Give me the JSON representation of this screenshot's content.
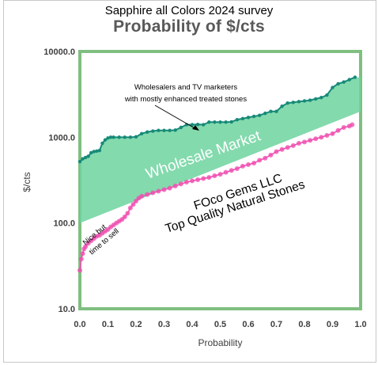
{
  "header": {
    "top_title": "Sapphire all Colors 2024 survey",
    "title": "Probability of $/cts"
  },
  "chart_data": {
    "type": "scatter",
    "title": "Probability of $/cts",
    "xlabel": "Probability",
    "ylabel": "$/cts",
    "xlim": [
      0.0,
      1.0
    ],
    "ylim": [
      10,
      10000
    ],
    "yscale": "log",
    "grid": false,
    "x_tick_labels": [
      "0.0",
      "0.1",
      "0.2",
      "0.3",
      "0.4",
      "0.5",
      "0.6",
      "0.7",
      "0.8",
      "0.9",
      "1.0"
    ],
    "y_tick_labels": [
      "10.0",
      "100.0",
      "1000.0",
      "10000.0"
    ],
    "colors": {
      "upper": "#178a78",
      "lower": "#f04fb0",
      "band": "#6dd49f"
    },
    "band": {
      "label": "Wholesale Market",
      "lower_edge": [
        [
          0.0,
          100
        ],
        [
          1.0,
          2000
        ]
      ],
      "upper_edge": "upper series"
    },
    "series": [
      {
        "role": "upper",
        "points": [
          [
            0.0,
            520
          ],
          [
            0.01,
            560
          ],
          [
            0.02,
            580
          ],
          [
            0.03,
            600
          ],
          [
            0.04,
            660
          ],
          [
            0.05,
            680
          ],
          [
            0.06,
            690
          ],
          [
            0.07,
            700
          ],
          [
            0.08,
            850
          ],
          [
            0.09,
            930
          ],
          [
            0.1,
            980
          ],
          [
            0.11,
            1000
          ],
          [
            0.12,
            1000
          ],
          [
            0.14,
            1000
          ],
          [
            0.16,
            1000
          ],
          [
            0.18,
            1000
          ],
          [
            0.2,
            1010
          ],
          [
            0.22,
            1100
          ],
          [
            0.24,
            1150
          ],
          [
            0.26,
            1180
          ],
          [
            0.28,
            1200
          ],
          [
            0.3,
            1200
          ],
          [
            0.32,
            1200
          ],
          [
            0.34,
            1210
          ],
          [
            0.36,
            1300
          ],
          [
            0.38,
            1400
          ],
          [
            0.4,
            1400
          ],
          [
            0.42,
            1410
          ],
          [
            0.44,
            1400
          ],
          [
            0.46,
            1500
          ],
          [
            0.48,
            1500
          ],
          [
            0.5,
            1500
          ],
          [
            0.52,
            1500
          ],
          [
            0.54,
            1510
          ],
          [
            0.56,
            1600
          ],
          [
            0.58,
            1650
          ],
          [
            0.6,
            1700
          ],
          [
            0.62,
            1750
          ],
          [
            0.64,
            1800
          ],
          [
            0.66,
            1900
          ],
          [
            0.68,
            2000
          ],
          [
            0.7,
            2000
          ],
          [
            0.72,
            2300
          ],
          [
            0.74,
            2500
          ],
          [
            0.76,
            2550
          ],
          [
            0.78,
            2600
          ],
          [
            0.8,
            2650
          ],
          [
            0.82,
            2700
          ],
          [
            0.84,
            2800
          ],
          [
            0.86,
            2900
          ],
          [
            0.88,
            3100
          ],
          [
            0.9,
            3800
          ],
          [
            0.92,
            4200
          ],
          [
            0.94,
            4400
          ],
          [
            0.96,
            4700
          ],
          [
            0.98,
            5000
          ]
        ]
      },
      {
        "role": "lower",
        "points": [
          [
            0.0,
            28
          ],
          [
            0.005,
            38
          ],
          [
            0.01,
            44
          ],
          [
            0.015,
            50
          ],
          [
            0.02,
            53
          ],
          [
            0.03,
            58
          ],
          [
            0.04,
            62
          ],
          [
            0.05,
            66
          ],
          [
            0.06,
            70
          ],
          [
            0.07,
            72
          ],
          [
            0.08,
            76
          ],
          [
            0.09,
            80
          ],
          [
            0.1,
            84
          ],
          [
            0.11,
            90
          ],
          [
            0.12,
            95
          ],
          [
            0.13,
            100
          ],
          [
            0.14,
            105
          ],
          [
            0.15,
            110
          ],
          [
            0.16,
            118
          ],
          [
            0.17,
            130
          ],
          [
            0.18,
            150
          ],
          [
            0.19,
            165
          ],
          [
            0.2,
            180
          ],
          [
            0.21,
            195
          ],
          [
            0.22,
            205
          ],
          [
            0.24,
            215
          ],
          [
            0.26,
            225
          ],
          [
            0.28,
            235
          ],
          [
            0.3,
            245
          ],
          [
            0.32,
            255
          ],
          [
            0.34,
            270
          ],
          [
            0.36,
            285
          ],
          [
            0.38,
            300
          ],
          [
            0.4,
            310
          ],
          [
            0.42,
            320
          ],
          [
            0.44,
            330
          ],
          [
            0.46,
            340
          ],
          [
            0.48,
            355
          ],
          [
            0.5,
            370
          ],
          [
            0.52,
            390
          ],
          [
            0.54,
            410
          ],
          [
            0.56,
            430
          ],
          [
            0.58,
            460
          ],
          [
            0.6,
            480
          ],
          [
            0.62,
            500
          ],
          [
            0.64,
            540
          ],
          [
            0.66,
            570
          ],
          [
            0.68,
            620
          ],
          [
            0.7,
            680
          ],
          [
            0.72,
            720
          ],
          [
            0.74,
            760
          ],
          [
            0.76,
            800
          ],
          [
            0.78,
            850
          ],
          [
            0.8,
            880
          ],
          [
            0.82,
            920
          ],
          [
            0.84,
            960
          ],
          [
            0.86,
            1000
          ],
          [
            0.88,
            1050
          ],
          [
            0.9,
            1100
          ],
          [
            0.92,
            1200
          ],
          [
            0.94,
            1300
          ],
          [
            0.96,
            1350
          ],
          [
            0.97,
            1400
          ]
        ]
      }
    ],
    "annotations": [
      {
        "text": "Wholesalers and TV marketers",
        "x": 0.23,
        "y": 4500
      },
      {
        "text": "with mostly enhanced treated stones",
        "x": 0.23,
        "y": 3300
      },
      {
        "text": "FOco Gems LLC",
        "x": 0.52,
        "y": 380
      },
      {
        "text": "Top Quality  Natural Stones",
        "x": 0.52,
        "y": 180
      },
      {
        "text": "Nice but",
        "x": 0.03,
        "y": 70
      },
      {
        "text": "time to sell",
        "x": 0.03,
        "y": 48
      }
    ]
  }
}
